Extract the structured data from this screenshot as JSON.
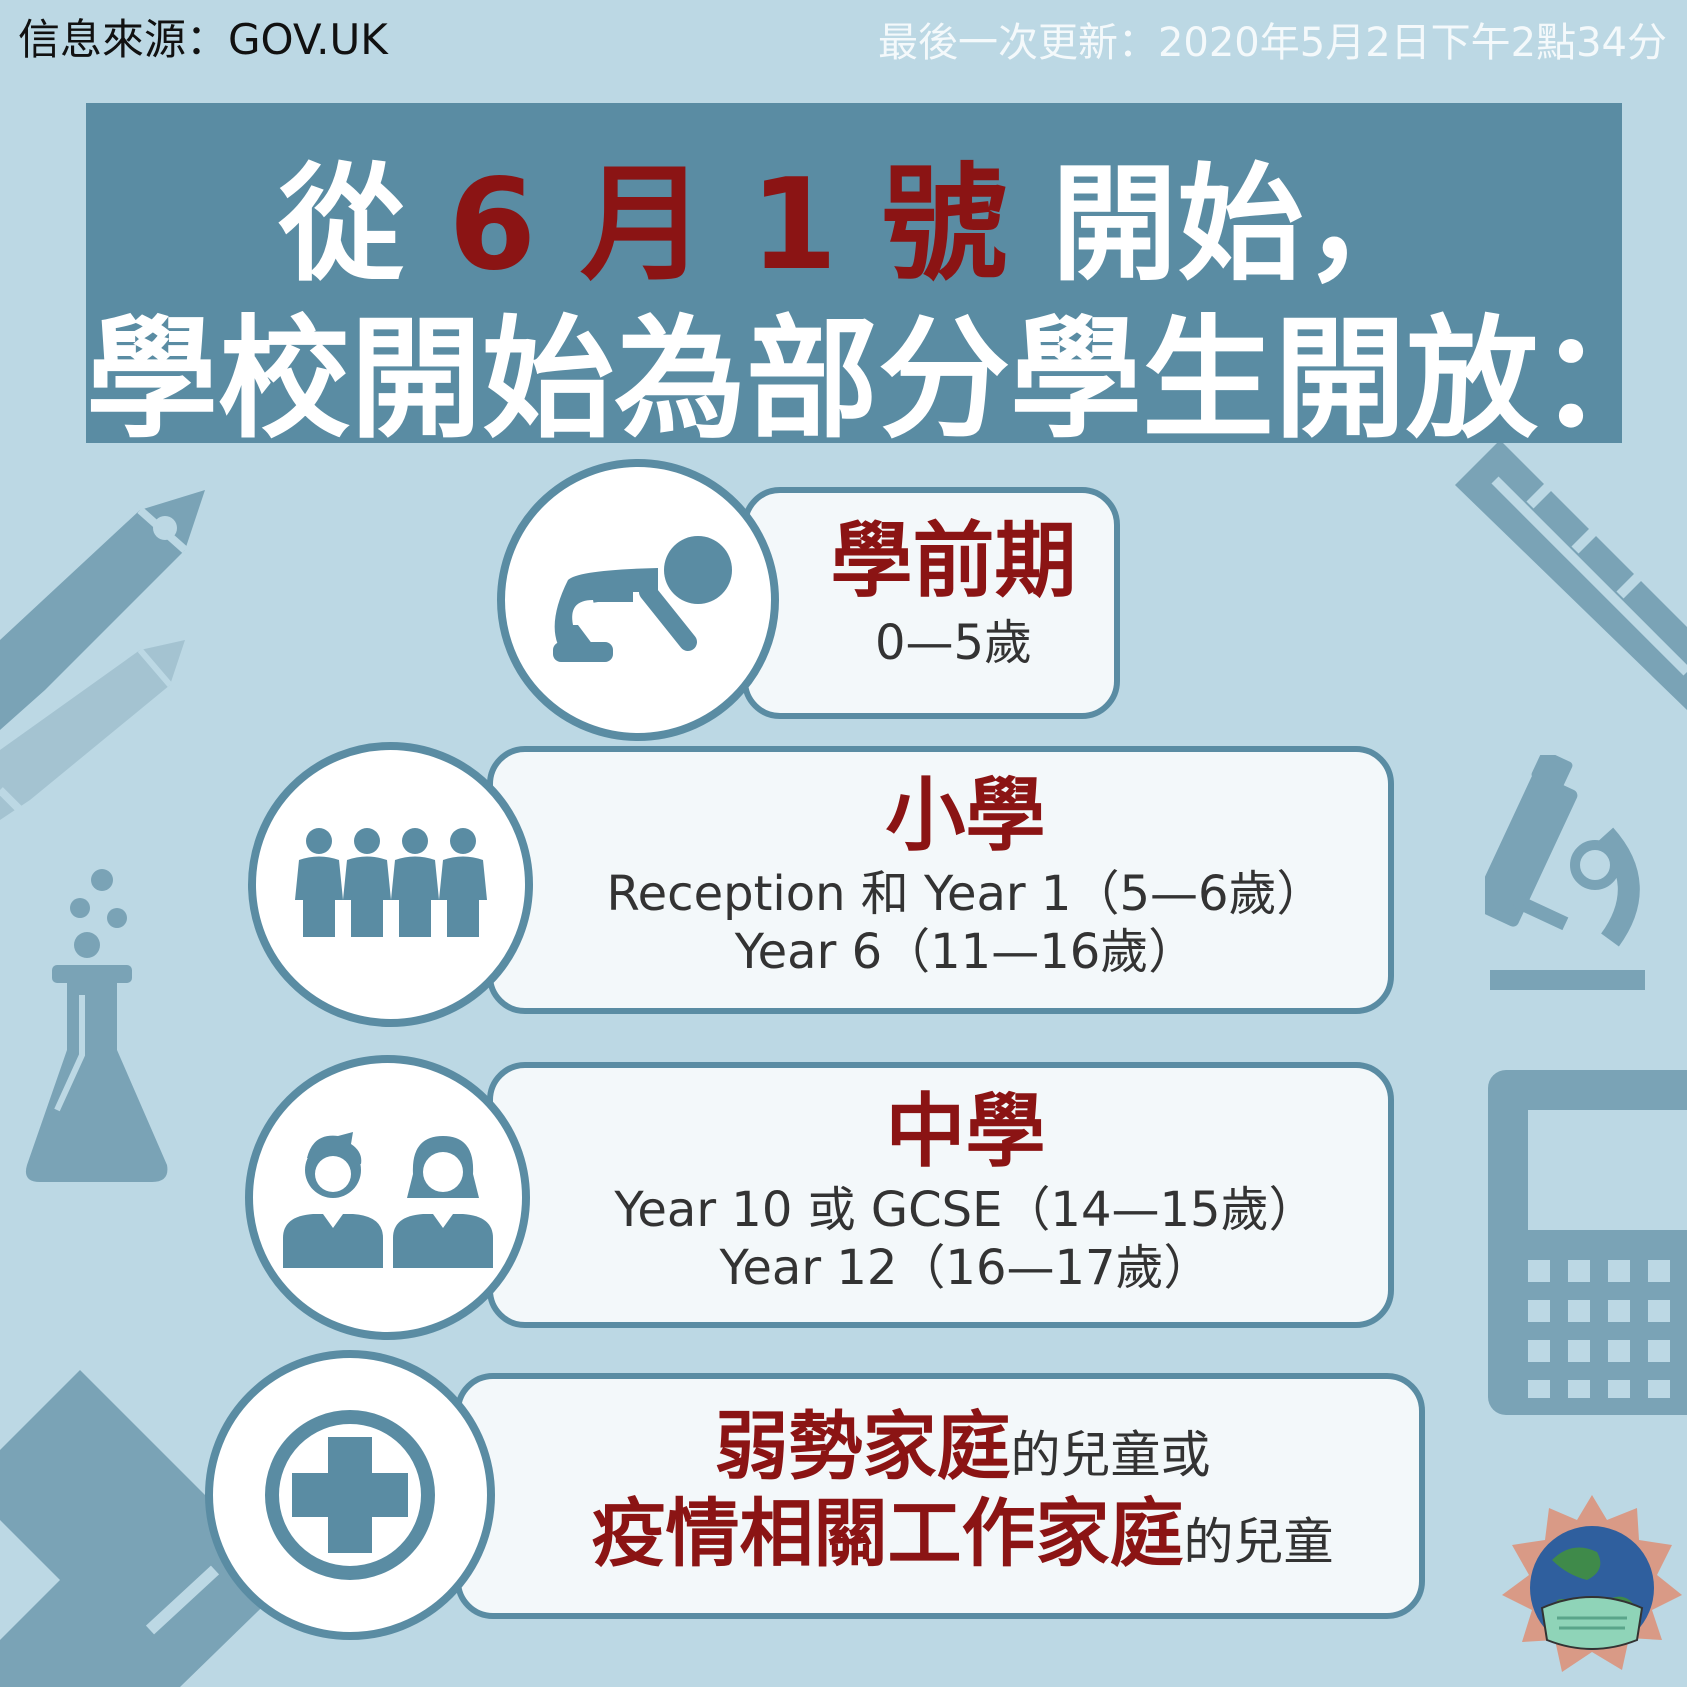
{
  "header": {
    "source": "信息來源：GOV.UK",
    "updated": "最後一次更新：2020年5月2日下午2點34分"
  },
  "banner": {
    "line1_a": "從 ",
    "line1_b": "6 月 1 號",
    "line1_c": " 開始，",
    "line2": "學校開始為部分學生開放："
  },
  "cards": {
    "preschool": {
      "title": "學前期",
      "line1": "0—5歲"
    },
    "primary": {
      "title": "小學",
      "line1": "Reception 和 Year 1（5—6歲）",
      "line2": "Year 6（11—16歲）"
    },
    "secondary": {
      "title": "中學",
      "line1": "Year 10 或 GCSE（14—15歲）",
      "line2": "Year 12（16—17歲）"
    },
    "special": {
      "l1_bold": "弱勢家庭",
      "l1_tail": "的兒童或",
      "l2_bold": "疫情相關工作家庭",
      "l2_tail": "的兒童"
    }
  },
  "colors": {
    "background": "#bcd8e4",
    "accent": "#5a8ca3",
    "title_red": "#8b1414"
  },
  "icons": [
    "pen-icon",
    "pencil-icon",
    "flask-icon",
    "ruler-icon",
    "microscope-icon",
    "calculator-icon",
    "ruler-triangle-icon",
    "crawling-baby-icon",
    "children-group-icon",
    "students-icon",
    "medical-cross-icon",
    "masked-earth-logo"
  ]
}
